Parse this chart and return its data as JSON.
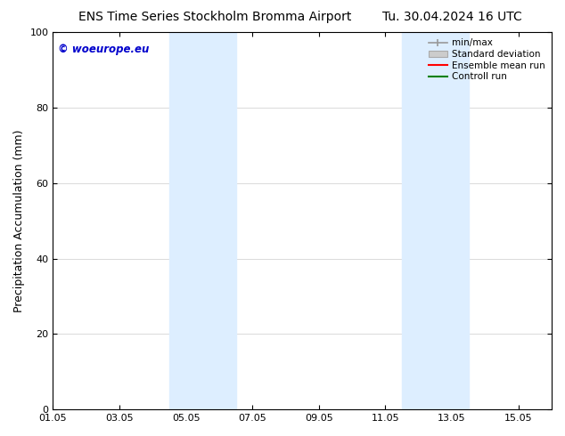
{
  "title_left": "ENS Time Series Stockholm Bromma Airport",
  "title_right": "Tu. 30.04.2024 16 UTC",
  "ylabel": "Precipitation Accumulation (mm)",
  "ylim": [
    0,
    100
  ],
  "yticks": [
    0,
    20,
    40,
    60,
    80,
    100
  ],
  "xlim": [
    0,
    15
  ],
  "xtick_labels": [
    "01.05",
    "03.05",
    "05.05",
    "07.05",
    "09.05",
    "11.05",
    "13.05",
    "15.05"
  ],
  "xtick_positions": [
    0,
    2,
    4,
    6,
    8,
    10,
    12,
    14
  ],
  "shaded_bands": [
    {
      "x_start": 3.5,
      "x_end": 5.5,
      "color": "#ddeeff"
    },
    {
      "x_start": 10.5,
      "x_end": 12.5,
      "color": "#ddeeff"
    }
  ],
  "watermark_text": "© woeurope.eu",
  "watermark_color": "#0000cc",
  "bg_color": "#ffffff",
  "title_fontsize": 10,
  "axis_label_fontsize": 9,
  "tick_fontsize": 8,
  "legend_fontsize": 7.5,
  "minmax_color": "#999999",
  "std_color": "#cccccc",
  "std_edge_color": "#aaaaaa",
  "ensemble_color": "#ff0000",
  "control_color": "#008000"
}
